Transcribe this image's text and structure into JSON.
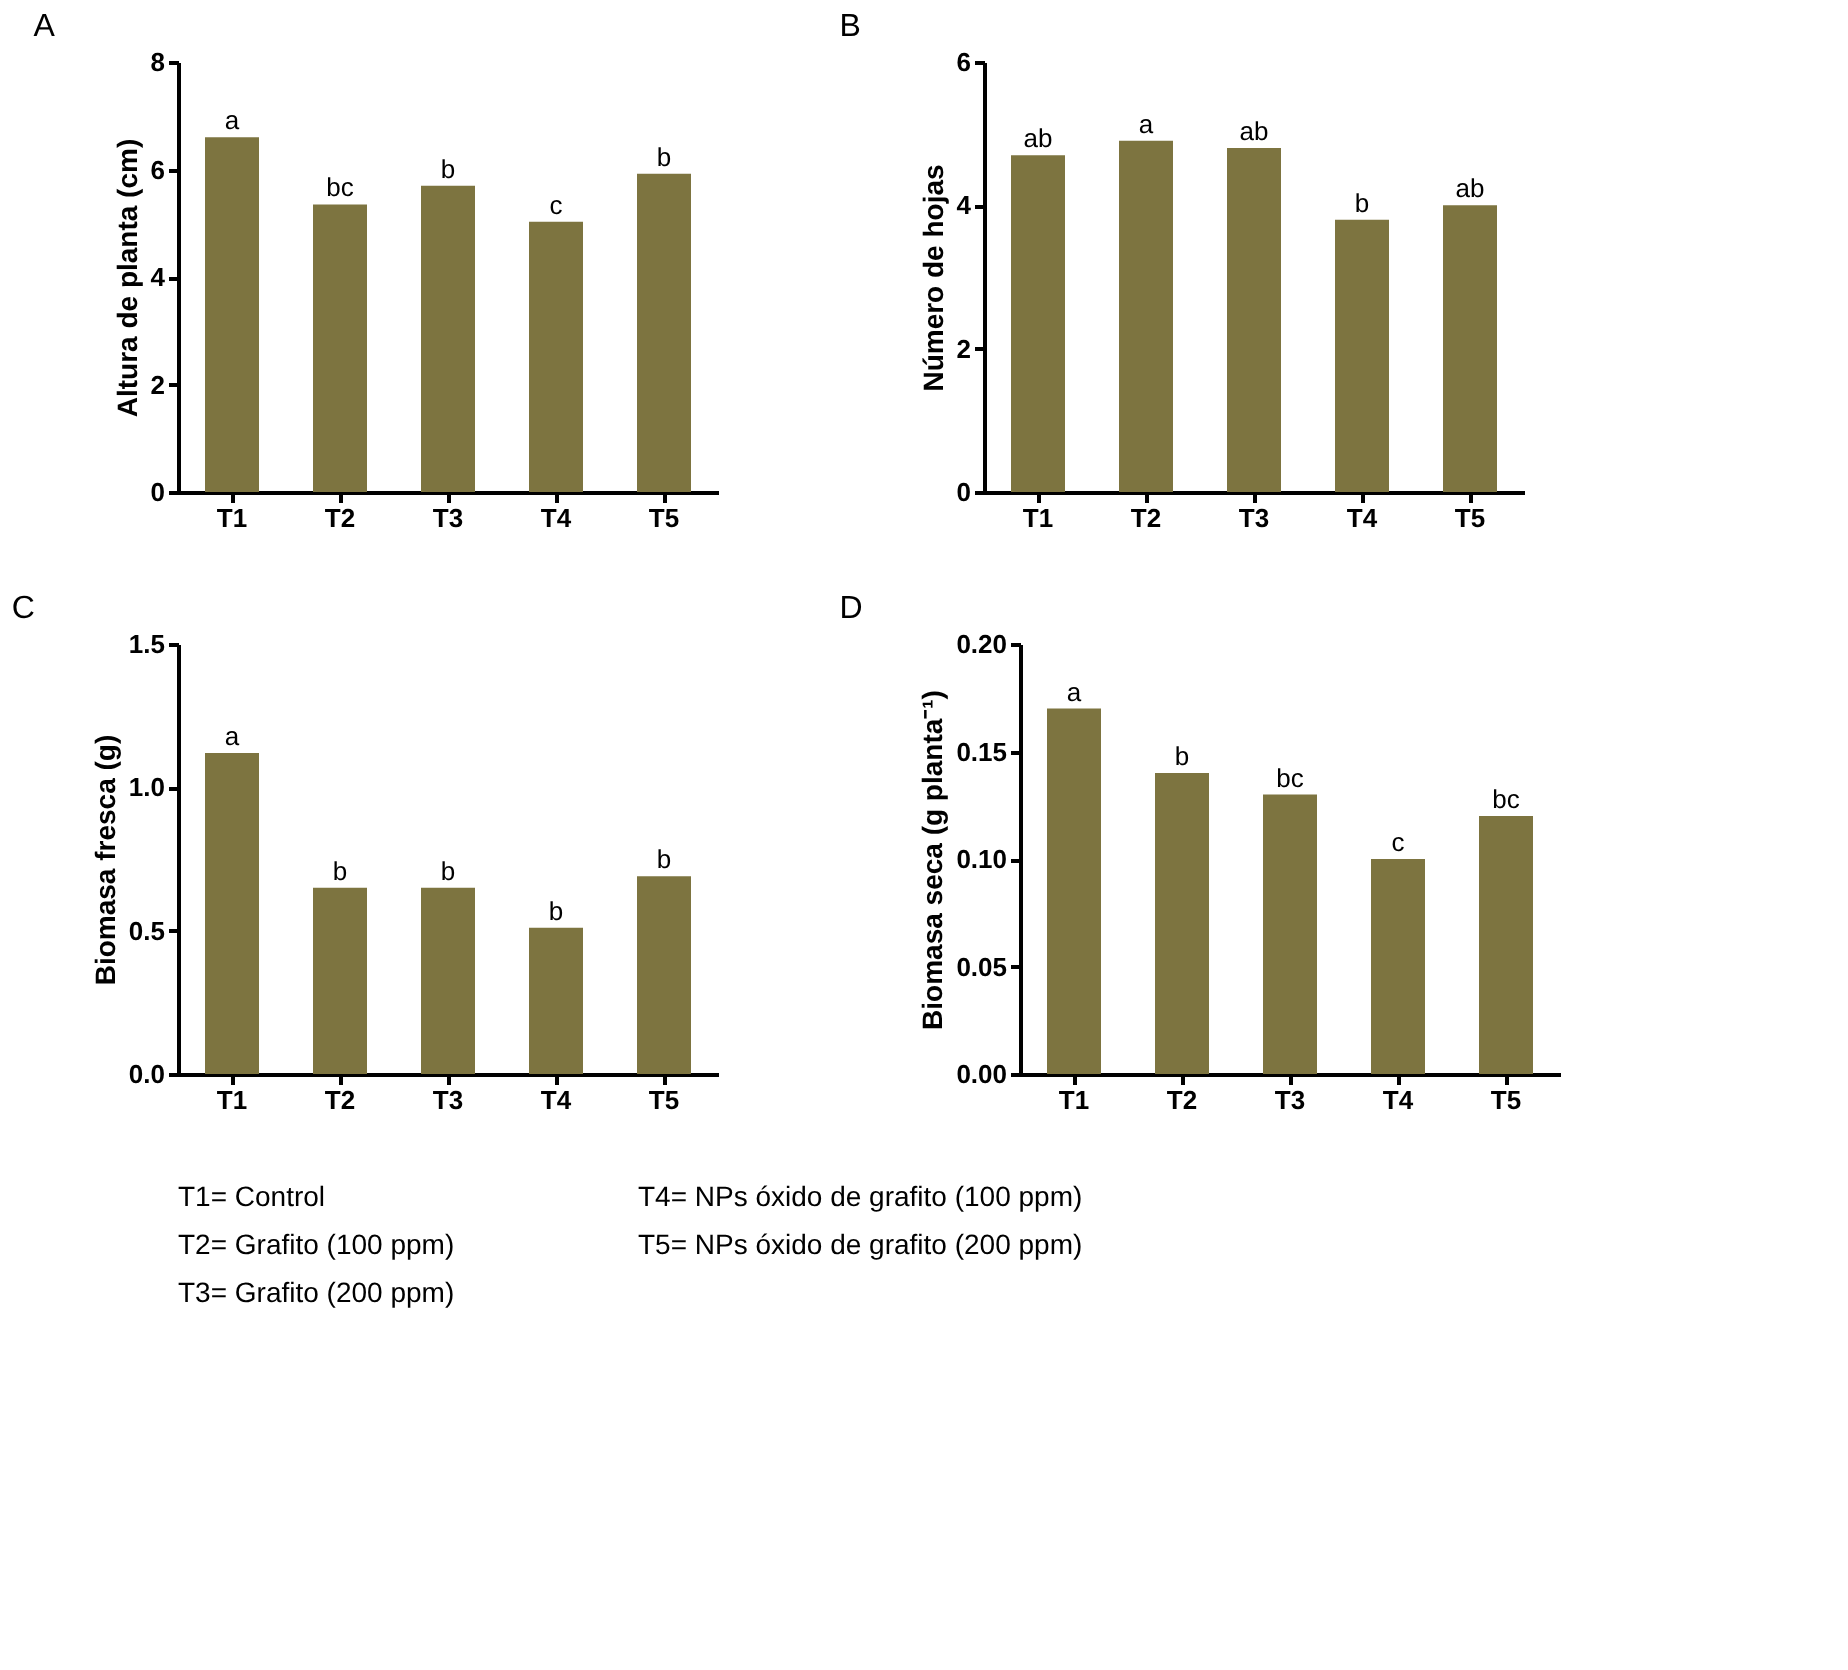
{
  "chart_data": [
    {
      "type": "bar",
      "title": "A",
      "ylabel": "Altura de planta (cm)",
      "categories": [
        "T1",
        "T2",
        "T3",
        "T4",
        "T5"
      ],
      "values": [
        6.6,
        5.35,
        5.7,
        5.03,
        5.92
      ],
      "color": "#7d7440",
      "value_labels": [
        "a",
        "bc",
        "b",
        "c",
        "b"
      ],
      "ylim": [
        0,
        8
      ],
      "yticks": [
        0,
        2,
        4,
        6,
        8
      ],
      "grid": false
    },
    {
      "type": "bar",
      "title": "B",
      "ylabel": "Número de hojas",
      "categories": [
        "T1",
        "T2",
        "T3",
        "T4",
        "T5"
      ],
      "values": [
        4.7,
        4.9,
        4.8,
        3.8,
        4.0
      ],
      "color": "#7d7440",
      "value_labels": [
        "ab",
        "a",
        "ab",
        "b",
        "ab"
      ],
      "ylim": [
        0,
        6
      ],
      "yticks": [
        0,
        2,
        4,
        6
      ],
      "grid": false
    },
    {
      "type": "bar",
      "title": "C",
      "ylabel": "Biomasa fresca (g)",
      "categories": [
        "T1",
        "T2",
        "T3",
        "T4",
        "T5"
      ],
      "values": [
        1.12,
        0.65,
        0.65,
        0.51,
        0.69
      ],
      "color": "#7d7440",
      "value_labels": [
        "a",
        "b",
        "b",
        "b",
        "b"
      ],
      "ylim": [
        0,
        1.5
      ],
      "yticks": [
        {
          "value": 0,
          "label": "0.0"
        },
        0.5,
        {
          "value": 1,
          "label": "1.0"
        },
        1.5
      ],
      "grid": false
    },
    {
      "type": "bar",
      "title": "D",
      "ylabel": "Biomasa seca (g planta⁻¹)",
      "categories": [
        "T1",
        "T2",
        "T3",
        "T4",
        "T5"
      ],
      "values": [
        0.17,
        0.14,
        0.13,
        0.1,
        0.12
      ],
      "color": "#7d7440",
      "value_labels": [
        "a",
        "b",
        "bc",
        "c",
        "bc"
      ],
      "ylim": [
        0,
        0.2
      ],
      "yticks": [
        {
          "value": 0,
          "label": "0.00"
        },
        {
          "value": 0.05,
          "label": "0.05"
        },
        {
          "value": 0.1,
          "label": "0.10"
        },
        {
          "value": 0.15,
          "label": "0.15"
        },
        {
          "value": 0.2,
          "label": "0.20"
        }
      ],
      "grid": false
    },
    {
      "type": "other",
      "annotations": [
        "T1= Control",
        "T2= Grafito (100 ppm)",
        "T3= Grafito (200 ppm)",
        "T4= NPs óxido de grafito (100 ppm)",
        "T5= NPs óxido de grafito (200 ppm)"
      ]
    }
  ]
}
